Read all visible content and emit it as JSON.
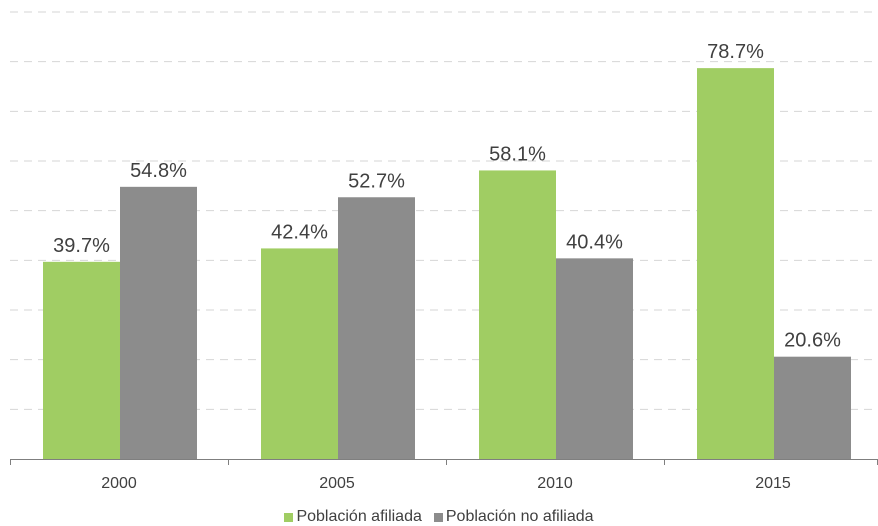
{
  "chart_data": {
    "type": "bar",
    "categories": [
      "2000",
      "2005",
      "2010",
      "2015"
    ],
    "series": [
      {
        "name": "Población afiliada",
        "color": "#a0cd63",
        "values": [
          39.7,
          42.4,
          58.1,
          78.7
        ],
        "labels": [
          "39.7%",
          "42.4%",
          "58.1%",
          "78.7%"
        ]
      },
      {
        "name": "Población no afiliada",
        "color": "#8c8c8c",
        "values": [
          54.8,
          52.7,
          40.4,
          20.6
        ],
        "labels": [
          "54.8%",
          "52.7%",
          "40.4%",
          "20.6%"
        ]
      }
    ],
    "ylim": [
      0,
      90
    ],
    "grid": true,
    "grid_style": "dashed",
    "legend_position": "bottom"
  }
}
